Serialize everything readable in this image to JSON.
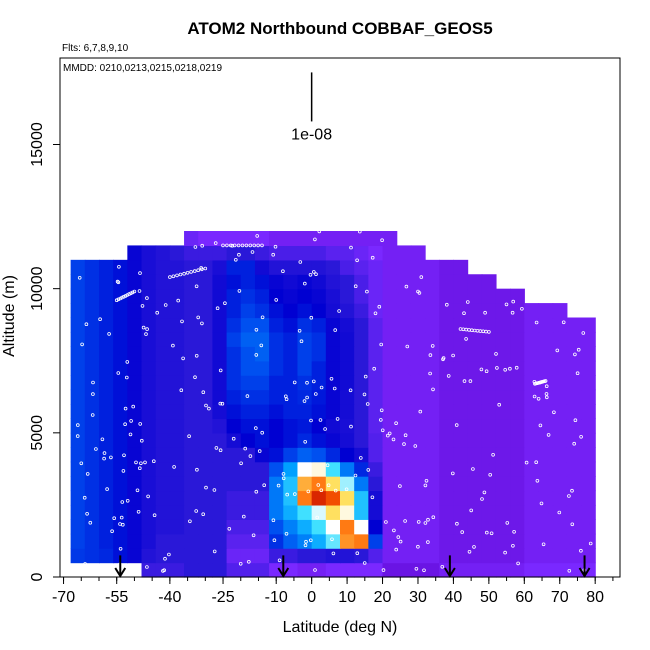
{
  "chart_data": {
    "type": "heatmap",
    "title": "ATOM2 Northbound COBBAF_GEOS5",
    "subtitle_flights": "Flts: 6,7,8,9,10",
    "subtitle_dates": "MMDD: 0210,0213,0215,0218,0219",
    "xlabel": "Latitude (deg N)",
    "ylabel": "Altitude (m)",
    "xlim": [
      -71,
      87
    ],
    "ylim": [
      0,
      18000
    ],
    "x_tick_labels": [
      "-70",
      "-55",
      "-40",
      "-25",
      "-10",
      "0",
      "10",
      "20",
      "30",
      "40",
      "50",
      "60",
      "70",
      "80"
    ],
    "x_ticks": [
      -70,
      -55,
      -40,
      -25,
      -10,
      0,
      10,
      20,
      30,
      40,
      50,
      60,
      70,
      80
    ],
    "x_minor_step": 5,
    "y_tick_labels": [
      "0",
      "5000",
      "10000",
      "15000"
    ],
    "y_ticks": [
      0,
      5000,
      10000,
      15000
    ],
    "scale_bar_label": "1e-08",
    "scale_bar": {
      "lat": 0,
      "alt_from": 15800,
      "alt_to": 17500
    },
    "flight_start_arrows_lat": [
      -54,
      -8,
      39,
      77
    ],
    "lat_bins": [
      -66,
      -62,
      -58,
      -54,
      -50,
      -46,
      -42,
      -38,
      -34,
      -30,
      -26,
      -22,
      -18,
      -14,
      -10,
      -6,
      -2,
      2,
      6,
      10,
      14,
      18,
      22,
      26,
      30,
      34,
      38,
      42,
      46,
      50,
      54,
      58,
      62,
      66,
      70,
      74,
      78
    ],
    "alt_bins": [
      250,
      750,
      1250,
      1750,
      2250,
      2750,
      3250,
      3750,
      4250,
      4750,
      5250,
      5750,
      6250,
      6750,
      7250,
      7750,
      8250,
      8750,
      9250,
      9750,
      10250,
      10750,
      11250,
      11750,
      12250
    ],
    "values_1e-08": [
      [
        0.35,
        0.34,
        0.35,
        0.1,
        0.18,
        0.18,
        0.18,
        0.18,
        0.2,
        0.2,
        0.2,
        0.15,
        0.15,
        0.15,
        0.1,
        0.1,
        0.08,
        0.08,
        0.1,
        0.1,
        0.1,
        0.1,
        0.05,
        0.05,
        0.05,
        0.05,
        0.08,
        0.08,
        0.08,
        0.08,
        0.08,
        0.08,
        0.1,
        0.1,
        0.1,
        0.1,
        0.1
      ],
      [
        0.37,
        0.36,
        0.35,
        0.32,
        0.28,
        0.22,
        0.2,
        0.2,
        0.2,
        0.2,
        0.2,
        0.12,
        0.12,
        0.12,
        0.18,
        0.18,
        0.2,
        0.2,
        0.22,
        0.22,
        0.2,
        0.15,
        0.08,
        0.08,
        0.08,
        0.08,
        0.06,
        0.06,
        0.06,
        0.06,
        0.06,
        0.06,
        0.08,
        0.08,
        0.08,
        0.08,
        0.08
      ],
      [
        0.38,
        0.36,
        0.34,
        0.32,
        0.28,
        0.24,
        0.2,
        0.2,
        0.2,
        0.2,
        0.2,
        0.14,
        0.14,
        0.14,
        0.36,
        0.42,
        0.46,
        0.52,
        0.62,
        0.86,
        0.88,
        0.38,
        0.08,
        0.08,
        0.08,
        0.08,
        0.06,
        0.06,
        0.06,
        0.06,
        0.06,
        0.06,
        0.08,
        0.08,
        0.08,
        0.08,
        0.08
      ],
      [
        0.38,
        0.36,
        0.34,
        0.32,
        0.28,
        0.24,
        0.22,
        0.22,
        0.2,
        0.2,
        0.2,
        0.16,
        0.16,
        0.16,
        0.4,
        0.46,
        0.52,
        0.6,
        0.7,
        0.88,
        0.7,
        0.3,
        0.08,
        0.08,
        0.08,
        0.08,
        0.06,
        0.06,
        0.06,
        0.06,
        0.06,
        0.06,
        0.08,
        0.08,
        0.08,
        0.08,
        0.08
      ],
      [
        0.38,
        0.36,
        0.34,
        0.32,
        0.28,
        0.24,
        0.22,
        0.22,
        0.2,
        0.2,
        0.2,
        0.18,
        0.18,
        0.18,
        0.45,
        0.52,
        0.6,
        0.68,
        0.8,
        0.72,
        0.55,
        0.25,
        0.08,
        0.08,
        0.08,
        0.08,
        0.06,
        0.06,
        0.06,
        0.06,
        0.06,
        0.06,
        0.08,
        0.08,
        0.08,
        0.08,
        0.08
      ],
      [
        0.38,
        0.36,
        0.34,
        0.32,
        0.28,
        0.24,
        0.22,
        0.22,
        0.2,
        0.2,
        0.2,
        0.18,
        0.18,
        0.18,
        0.45,
        0.55,
        0.88,
        0.96,
        0.92,
        0.8,
        0.55,
        0.25,
        0.08,
        0.08,
        0.08,
        0.08,
        0.06,
        0.06,
        0.06,
        0.06,
        0.06,
        0.06,
        0.08,
        0.08,
        0.08,
        0.08,
        0.08
      ],
      [
        0.38,
        0.36,
        0.34,
        0.32,
        0.28,
        0.24,
        0.22,
        0.22,
        0.2,
        0.2,
        0.2,
        0.2,
        0.2,
        0.2,
        0.45,
        0.55,
        0.84,
        0.88,
        0.8,
        0.65,
        0.45,
        0.2,
        0.08,
        0.08,
        0.08,
        0.08,
        0.06,
        0.06,
        0.06,
        0.06,
        0.06,
        0.06,
        0.08,
        0.08,
        0.08,
        0.08,
        0.08
      ],
      [
        0.38,
        0.36,
        0.34,
        0.32,
        0.28,
        0.24,
        0.22,
        0.22,
        0.2,
        0.2,
        0.2,
        0.2,
        0.2,
        0.2,
        0.4,
        0.5,
        0.7,
        0.72,
        0.6,
        0.45,
        0.35,
        0.18,
        0.08,
        0.08,
        0.08,
        0.08,
        0.06,
        0.06,
        0.06,
        0.06,
        0.06,
        0.06,
        0.08,
        0.08,
        0.08,
        0.08,
        0.08
      ],
      [
        0.38,
        0.36,
        0.34,
        0.32,
        0.28,
        0.24,
        0.22,
        0.22,
        0.2,
        0.2,
        0.2,
        0.2,
        0.2,
        0.28,
        0.32,
        0.38,
        0.42,
        0.4,
        0.35,
        0.3,
        0.25,
        0.15,
        0.08,
        0.08,
        0.08,
        0.08,
        0.06,
        0.06,
        0.06,
        0.06,
        0.06,
        0.06,
        0.08,
        0.08,
        0.08,
        0.08,
        0.08
      ],
      [
        0.38,
        0.36,
        0.34,
        0.32,
        0.28,
        0.24,
        0.22,
        0.22,
        0.2,
        0.2,
        0.2,
        0.25,
        0.3,
        0.32,
        0.3,
        0.32,
        0.35,
        0.32,
        0.28,
        0.25,
        0.2,
        0.15,
        0.08,
        0.08,
        0.08,
        0.08,
        0.06,
        0.06,
        0.06,
        0.06,
        0.06,
        0.06,
        0.08,
        0.08,
        0.08,
        0.08,
        0.08
      ],
      [
        0.38,
        0.36,
        0.34,
        0.32,
        0.28,
        0.24,
        0.22,
        0.22,
        0.2,
        0.2,
        0.22,
        0.3,
        0.32,
        0.32,
        0.3,
        0.32,
        0.33,
        0.3,
        0.26,
        0.24,
        0.2,
        0.14,
        0.08,
        0.08,
        0.08,
        0.08,
        0.06,
        0.06,
        0.06,
        0.06,
        0.06,
        0.06,
        0.08,
        0.08,
        0.08,
        0.08,
        0.08
      ],
      [
        0.38,
        0.36,
        0.34,
        0.32,
        0.28,
        0.24,
        0.22,
        0.22,
        0.2,
        0.2,
        0.25,
        0.32,
        0.34,
        0.34,
        0.32,
        0.34,
        0.34,
        0.32,
        0.28,
        0.25,
        0.2,
        0.14,
        0.08,
        0.08,
        0.08,
        0.08,
        0.06,
        0.06,
        0.06,
        0.06,
        0.06,
        0.06,
        0.08,
        0.08,
        0.08,
        0.08,
        0.08
      ],
      [
        0.38,
        0.36,
        0.34,
        0.32,
        0.28,
        0.24,
        0.22,
        0.22,
        0.2,
        0.2,
        0.26,
        0.34,
        0.36,
        0.36,
        0.34,
        0.34,
        0.35,
        0.33,
        0.28,
        0.25,
        0.2,
        0.14,
        0.08,
        0.08,
        0.08,
        0.08,
        0.06,
        0.06,
        0.06,
        0.06,
        0.06,
        0.06,
        0.08,
        0.08,
        0.08,
        0.08,
        0.08
      ],
      [
        0.38,
        0.36,
        0.34,
        0.32,
        0.28,
        0.24,
        0.22,
        0.22,
        0.2,
        0.2,
        0.26,
        0.36,
        0.38,
        0.38,
        0.34,
        0.34,
        0.36,
        0.34,
        0.28,
        0.26,
        0.2,
        0.14,
        0.08,
        0.08,
        0.08,
        0.08,
        0.06,
        0.06,
        0.06,
        0.06,
        0.06,
        0.06,
        0.08,
        0.08,
        0.08,
        0.08,
        0.08
      ],
      [
        0.38,
        0.36,
        0.34,
        0.32,
        0.28,
        0.24,
        0.22,
        0.22,
        0.2,
        0.2,
        0.26,
        0.36,
        0.4,
        0.4,
        0.36,
        0.34,
        0.38,
        0.34,
        0.28,
        0.26,
        0.2,
        0.14,
        0.08,
        0.08,
        0.08,
        0.08,
        0.06,
        0.06,
        0.06,
        0.06,
        0.06,
        0.06,
        0.08,
        0.08,
        0.08,
        0.08,
        0.08
      ],
      [
        0.38,
        0.36,
        0.34,
        0.32,
        0.28,
        0.24,
        0.22,
        0.22,
        0.2,
        0.2,
        0.26,
        0.36,
        0.4,
        0.42,
        0.36,
        0.34,
        0.38,
        0.36,
        0.28,
        0.26,
        0.2,
        0.14,
        0.08,
        0.08,
        0.08,
        0.08,
        0.06,
        0.06,
        0.06,
        0.06,
        0.06,
        0.06,
        0.08,
        0.08,
        0.08,
        0.08,
        0.08
      ],
      [
        0.38,
        0.36,
        0.34,
        0.32,
        0.28,
        0.24,
        0.22,
        0.22,
        0.2,
        0.2,
        0.26,
        0.38,
        0.42,
        0.42,
        0.36,
        0.34,
        0.38,
        0.36,
        0.28,
        0.26,
        0.2,
        0.14,
        0.08,
        0.08,
        0.08,
        0.08,
        0.06,
        0.06,
        0.06,
        0.06,
        0.06,
        0.06,
        0.08,
        0.08,
        0.08,
        0.08,
        0.08
      ],
      [
        0.38,
        0.36,
        0.34,
        0.32,
        0.28,
        0.24,
        0.22,
        0.22,
        0.2,
        0.2,
        0.26,
        0.36,
        0.4,
        0.4,
        0.34,
        0.32,
        0.36,
        0.34,
        0.28,
        0.25,
        0.2,
        0.14,
        0.08,
        0.08,
        0.08,
        0.08,
        0.06,
        0.06,
        0.06,
        0.06,
        0.06,
        0.06,
        0.08,
        0.08,
        0.08,
        0.08,
        0.08
      ],
      [
        0.38,
        0.36,
        0.34,
        0.32,
        0.28,
        0.24,
        0.22,
        0.22,
        0.2,
        0.2,
        0.26,
        0.34,
        0.38,
        0.36,
        0.32,
        0.3,
        0.32,
        0.3,
        0.25,
        0.22,
        0.18,
        0.12,
        0.08,
        0.08,
        0.08,
        0.08,
        0.06,
        0.06,
        0.06,
        0.06,
        0.06,
        0.06,
        0.08,
        0.08,
        0.08,
        0.08,
        0.08
      ],
      [
        0.38,
        0.36,
        0.34,
        0.32,
        0.28,
        0.24,
        0.22,
        0.22,
        0.2,
        0.2,
        0.26,
        0.34,
        0.36,
        0.34,
        0.3,
        0.28,
        0.3,
        0.28,
        0.24,
        0.2,
        0.16,
        0.12,
        0.08,
        0.08,
        0.08,
        0.08,
        0.06,
        0.06,
        0.06,
        0.06,
        0.06,
        0.06,
        0.08,
        0.08,
        0.08,
        0.08,
        0.08
      ],
      [
        0.38,
        0.36,
        0.34,
        0.32,
        0.28,
        0.24,
        0.22,
        0.22,
        0.2,
        0.2,
        0.26,
        0.32,
        0.34,
        0.32,
        0.28,
        0.26,
        0.28,
        0.26,
        0.22,
        0.2,
        0.16,
        0.12,
        0.08,
        0.08,
        0.08,
        0.08,
        0.06,
        0.06,
        0.06,
        0.06,
        0.06,
        0.06,
        0.08,
        0.08,
        0.08,
        0.08,
        0.08
      ],
      [
        0.38,
        0.36,
        0.34,
        0.32,
        0.28,
        0.24,
        0.22,
        0.22,
        0.2,
        0.2,
        0.24,
        0.34,
        0.34,
        0.26,
        0.22,
        0.22,
        0.22,
        0.22,
        0.2,
        0.16,
        0.14,
        0.12,
        0.08,
        0.08,
        0.08,
        0.08,
        0.06,
        0.06,
        0.06,
        0.06,
        0.06,
        0.06,
        0.08,
        0.08,
        0.08,
        0.08,
        0.08
      ],
      [
        null,
        null,
        null,
        null,
        0.28,
        0.24,
        0.22,
        0.2,
        0.18,
        0.18,
        0.18,
        0.2,
        0.2,
        0.18,
        0.16,
        0.16,
        0.16,
        0.16,
        0.14,
        0.14,
        0.12,
        0.1,
        0.08,
        0.08,
        0.08,
        null,
        null,
        null,
        null,
        null,
        null,
        null,
        null,
        null,
        null,
        null,
        null
      ],
      [
        null,
        null,
        null,
        null,
        null,
        null,
        null,
        null,
        0.12,
        0.1,
        0.1,
        0.1,
        0.1,
        0.1,
        0.08,
        0.08,
        0.08,
        0.08,
        0.08,
        0.08,
        0.08,
        0.08,
        0.08,
        null,
        null,
        null,
        null,
        null,
        null,
        null,
        null,
        null,
        null,
        null,
        null,
        null,
        null
      ],
      [
        null,
        null,
        null,
        null,
        null,
        null,
        null,
        null,
        null,
        null,
        null,
        null,
        null,
        null,
        null,
        null,
        null,
        null,
        null,
        null,
        null,
        null,
        null,
        null,
        null,
        null,
        null,
        null,
        null,
        null,
        null,
        null,
        null,
        null,
        null,
        null,
        null
      ]
    ],
    "column_top_alt": [
      10800,
      11300,
      11500,
      11800,
      11900,
      12000,
      12000,
      12300,
      12300,
      12300,
      12300,
      12300,
      12300,
      12300,
      12300,
      12300,
      12300,
      12300,
      12300,
      12300,
      12300,
      12300,
      12300,
      12300,
      11500,
      11000,
      11000,
      10700,
      10500,
      10200,
      9800,
      9800,
      9500,
      9300,
      9300,
      9000,
      8800
    ],
    "blank_patch": {
      "lat_from": -66,
      "lat_to": -47,
      "alt_from": 0,
      "alt_to": 500
    },
    "colormap": [
      "#5a00c8",
      "#7a28ff",
      "#2a18d8",
      "#0000d2",
      "#0050f0",
      "#00a0ff",
      "#40e0ff",
      "#ffffff",
      "#ffe060",
      "#ff6000",
      "#c00000"
    ],
    "grid": false,
    "legend": "none"
  }
}
